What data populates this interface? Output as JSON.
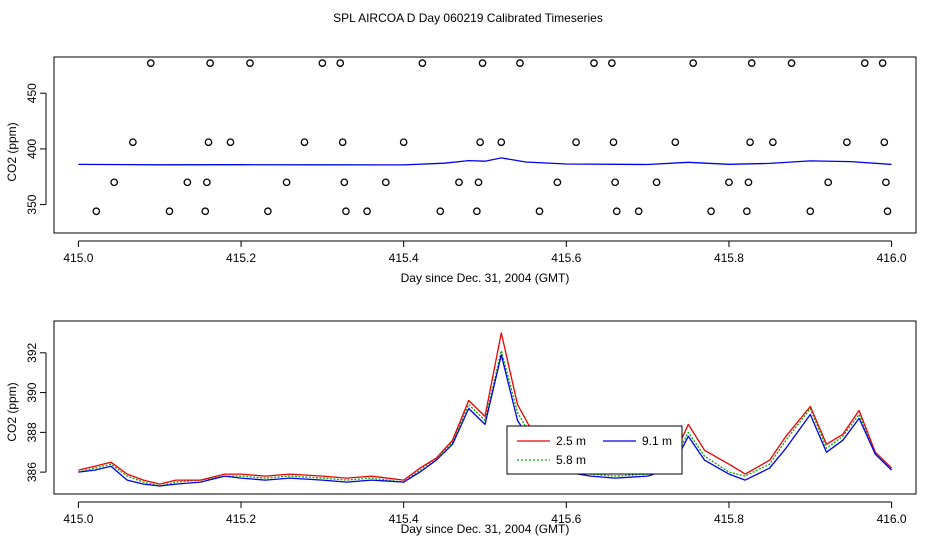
{
  "page": {
    "title": "SPL AIRCOA D  Day 060219  Calibrated Timeseries"
  },
  "chart_data": [
    {
      "type": "scatter",
      "title": "",
      "xlabel": "Day since Dec. 31, 2004 (GMT)",
      "ylabel": "CO2 (ppm)",
      "xlim": [
        414.97,
        416.03
      ],
      "ylim": [
        324.5,
        482.5
      ],
      "x_ticks": [
        415.0,
        415.2,
        415.4,
        415.6,
        415.8,
        416.0
      ],
      "x_tick_labels": [
        "415.0",
        "415.2",
        "415.4",
        "415.6",
        "415.8",
        "416.0"
      ],
      "y_ticks": [
        350,
        400,
        450
      ],
      "y_tick_labels": [
        "350",
        "400",
        "450"
      ],
      "series": [
        {
          "color": "#000000",
          "marker": "open-circle",
          "points": [
            [
              415.022,
              344
            ],
            [
              415.044,
              370
            ],
            [
              415.067,
              406
            ],
            [
              415.089,
              477
            ],
            [
              415.112,
              344
            ],
            [
              415.134,
              370
            ],
            [
              415.156,
              344
            ],
            [
              415.158,
              370
            ],
            [
              415.16,
              406
            ],
            [
              415.162,
              477
            ],
            [
              415.187,
              406
            ],
            [
              415.211,
              477
            ],
            [
              415.233,
              344
            ],
            [
              415.256,
              370
            ],
            [
              415.278,
              406
            ],
            [
              415.3,
              477
            ],
            [
              415.322,
              477
            ],
            [
              415.325,
              406
            ],
            [
              415.327,
              370
            ],
            [
              415.329,
              344
            ],
            [
              415.355,
              344
            ],
            [
              415.378,
              370
            ],
            [
              415.4,
              406
            ],
            [
              415.423,
              477
            ],
            [
              415.445,
              344
            ],
            [
              415.468,
              370
            ],
            [
              415.49,
              344
            ],
            [
              415.492,
              370
            ],
            [
              415.494,
              406
            ],
            [
              415.497,
              477
            ],
            [
              415.52,
              406
            ],
            [
              415.543,
              477
            ],
            [
              415.567,
              344
            ],
            [
              415.589,
              370
            ],
            [
              415.612,
              406
            ],
            [
              415.634,
              477
            ],
            [
              415.656,
              477
            ],
            [
              415.658,
              406
            ],
            [
              415.66,
              370
            ],
            [
              415.662,
              344
            ],
            [
              415.689,
              344
            ],
            [
              415.711,
              370
            ],
            [
              415.734,
              406
            ],
            [
              415.756,
              477
            ],
            [
              415.778,
              344
            ],
            [
              415.8,
              370
            ],
            [
              415.822,
              344
            ],
            [
              415.824,
              370
            ],
            [
              415.826,
              406
            ],
            [
              415.828,
              477
            ],
            [
              415.854,
              406
            ],
            [
              415.877,
              477
            ],
            [
              415.9,
              344
            ],
            [
              415.922,
              370
            ],
            [
              415.945,
              406
            ],
            [
              415.967,
              477
            ],
            [
              415.989,
              477
            ],
            [
              415.991,
              406
            ],
            [
              415.993,
              370
            ],
            [
              415.995,
              344
            ]
          ]
        },
        {
          "color": "#0000ee",
          "marker": "line",
          "points": [
            [
              415.0,
              386.1
            ],
            [
              415.1,
              385.7
            ],
            [
              415.2,
              385.8
            ],
            [
              415.3,
              385.7
            ],
            [
              415.4,
              385.6
            ],
            [
              415.45,
              387.2
            ],
            [
              415.48,
              389.5
            ],
            [
              415.5,
              389.0
            ],
            [
              415.52,
              391.9
            ],
            [
              415.55,
              388.2
            ],
            [
              415.6,
              386.4
            ],
            [
              415.7,
              386.0
            ],
            [
              415.75,
              388.0
            ],
            [
              415.8,
              386.2
            ],
            [
              415.85,
              387.0
            ],
            [
              415.9,
              389.2
            ],
            [
              415.95,
              388.6
            ],
            [
              416.0,
              386.1
            ]
          ]
        }
      ]
    },
    {
      "type": "line",
      "title": "",
      "xlabel": "Day since Dec. 31, 2004 (GMT)",
      "ylabel": "CO2 (ppm)",
      "xlim": [
        414.97,
        416.03
      ],
      "ylim": [
        384.9,
        393.6
      ],
      "x_ticks": [
        415.0,
        415.2,
        415.4,
        415.6,
        415.8,
        416.0
      ],
      "x_tick_labels": [
        "415.0",
        "415.2",
        "415.4",
        "415.6",
        "415.8",
        "416.0"
      ],
      "y_ticks": [
        386,
        388,
        390,
        392
      ],
      "y_tick_labels": [
        "386",
        "388",
        "390",
        "392"
      ],
      "legend": {
        "placement": "inside, lower center-right"
      },
      "x": [
        415.0,
        415.02,
        415.04,
        415.06,
        415.08,
        415.1,
        415.12,
        415.15,
        415.18,
        415.2,
        415.23,
        415.26,
        415.3,
        415.33,
        415.36,
        415.4,
        415.42,
        415.44,
        415.46,
        415.48,
        415.5,
        415.52,
        415.54,
        415.56,
        415.58,
        415.6,
        415.63,
        415.66,
        415.7,
        415.73,
        415.75,
        415.77,
        415.8,
        415.82,
        415.85,
        415.87,
        415.9,
        415.92,
        415.94,
        415.96,
        415.98,
        416.0
      ],
      "series": [
        {
          "name": "2.5 m",
          "color": "#ee0000",
          "values": [
            386.1,
            386.3,
            386.5,
            385.9,
            385.6,
            385.4,
            385.6,
            385.6,
            385.9,
            385.9,
            385.8,
            385.9,
            385.8,
            385.7,
            385.8,
            385.6,
            386.2,
            386.7,
            387.6,
            389.6,
            388.8,
            393.0,
            389.4,
            387.9,
            386.8,
            386.5,
            386.1,
            386.0,
            386.1,
            386.6,
            388.4,
            387.1,
            386.4,
            385.9,
            386.6,
            387.8,
            389.3,
            387.4,
            387.9,
            389.1,
            387.0,
            386.2
          ]
        },
        {
          "name": "9.1 m",
          "color": "#0000ee",
          "values": [
            386.0,
            386.1,
            386.3,
            385.6,
            385.4,
            385.3,
            385.4,
            385.5,
            385.8,
            385.7,
            385.6,
            385.7,
            385.6,
            385.5,
            385.6,
            385.5,
            386.0,
            386.6,
            387.4,
            389.2,
            388.4,
            391.9,
            388.6,
            387.3,
            386.3,
            386.0,
            385.8,
            385.7,
            385.8,
            386.2,
            387.8,
            386.6,
            385.9,
            385.6,
            386.2,
            387.2,
            388.9,
            387.0,
            387.6,
            388.7,
            386.9,
            386.1
          ]
        },
        {
          "name": "5.8 m",
          "color": "#00aa00",
          "values": [
            386.0,
            386.2,
            386.4,
            385.8,
            385.5,
            385.3,
            385.5,
            385.6,
            385.8,
            385.8,
            385.7,
            385.8,
            385.7,
            385.6,
            385.7,
            385.5,
            386.1,
            386.7,
            387.5,
            389.4,
            388.6,
            392.1,
            389.0,
            387.6,
            386.5,
            386.2,
            385.9,
            385.8,
            385.9,
            386.4,
            388.0,
            386.8,
            386.0,
            385.8,
            386.4,
            387.6,
            389.2,
            387.2,
            387.8,
            388.9,
            386.9,
            386.1
          ]
        }
      ]
    }
  ]
}
